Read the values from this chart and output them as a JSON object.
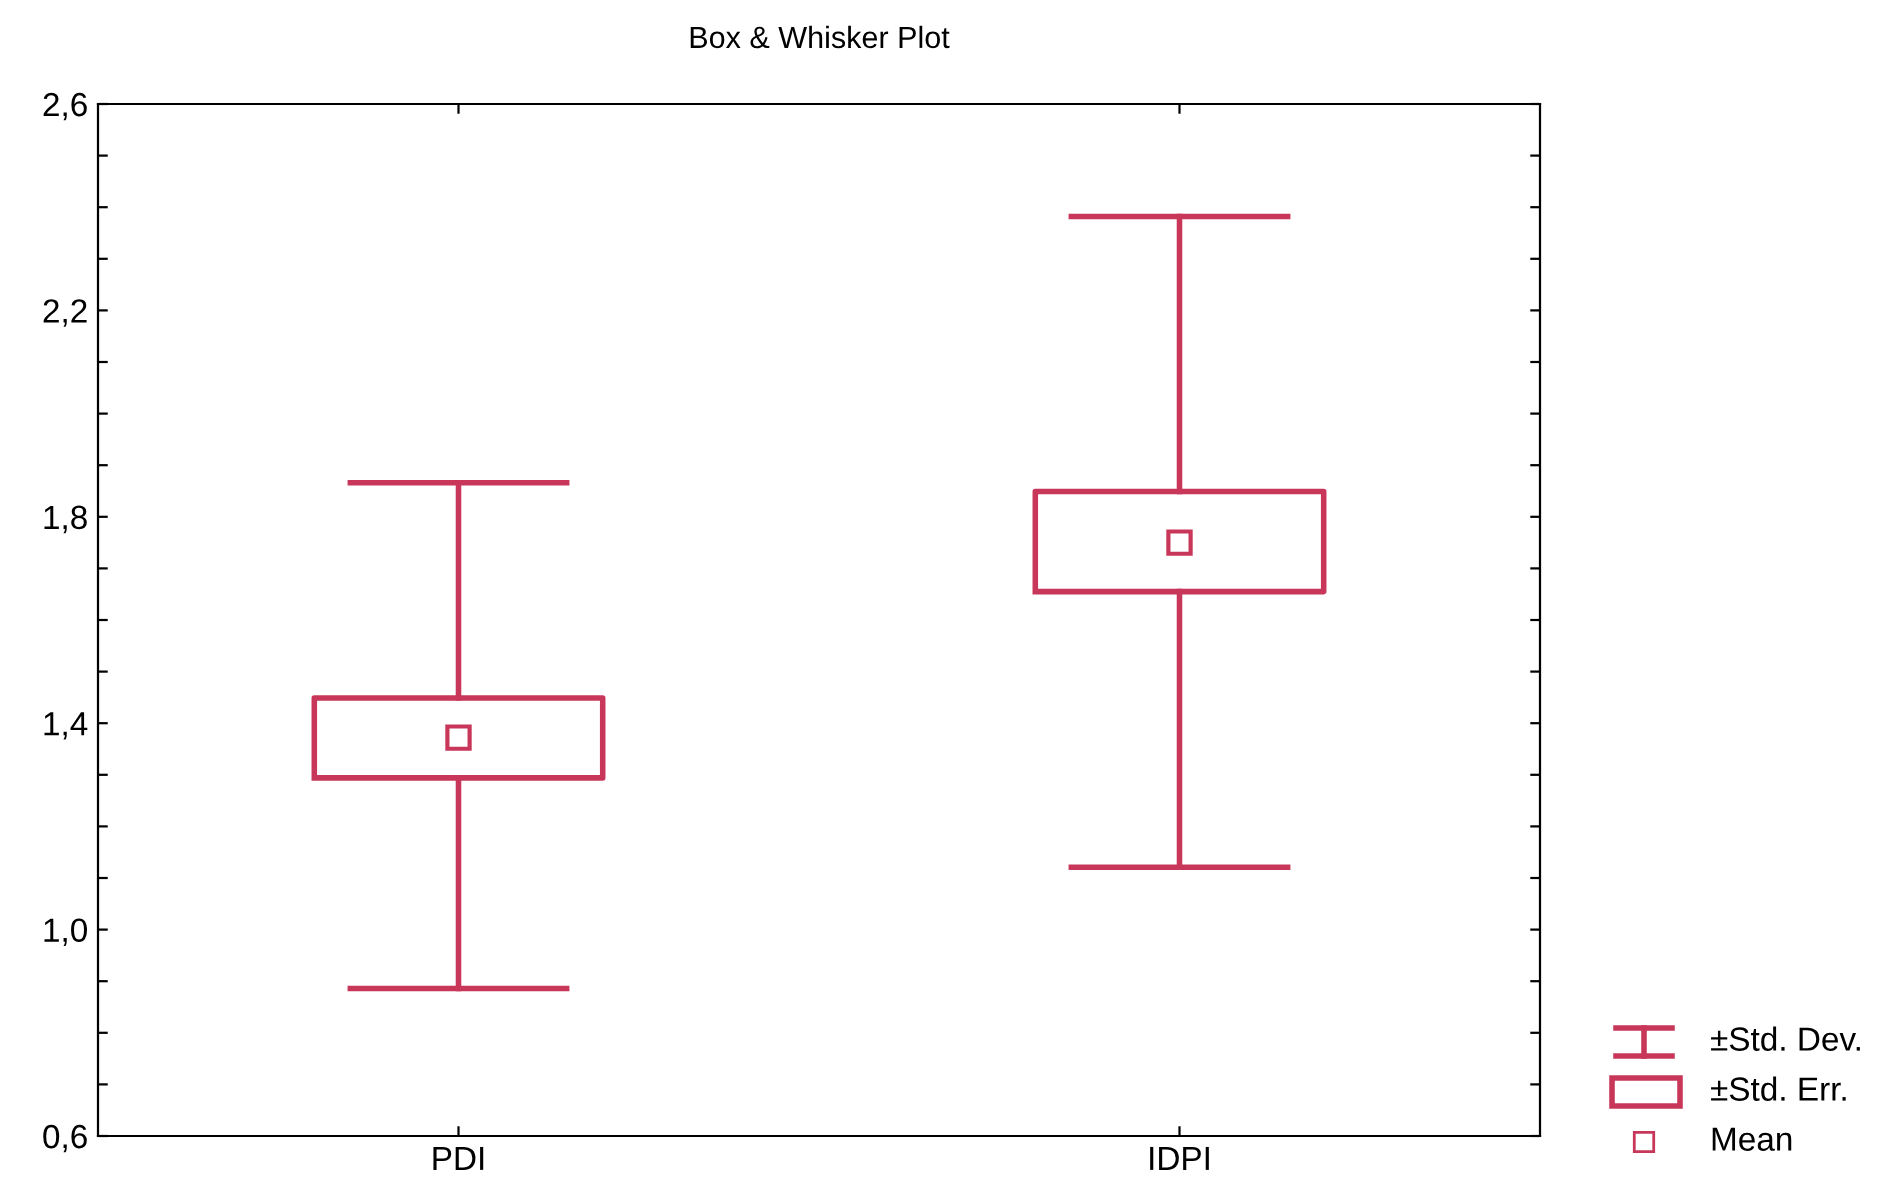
{
  "chart_data": {
    "type": "box",
    "title": "Box & Whisker Plot",
    "categories": [
      "PDI",
      "IDPI"
    ],
    "series": [
      {
        "color": "#c8375a",
        "boxes": [
          {
            "low": 0.886,
            "q1": 1.294,
            "mean": 1.372,
            "q3": 1.449,
            "high": 1.866
          },
          {
            "low": 1.121,
            "q1": 1.655,
            "mean": 1.75,
            "q3": 1.849,
            "high": 2.382
          }
        ]
      }
    ],
    "annotations": [
      "±Std. Dev.",
      "±Std. Err.",
      "Mean"
    ],
    "marker": "square",
    "ylim": [
      0.6,
      2.6
    ],
    "yticks": [
      {
        "value": 0.6,
        "label": "0,6"
      },
      {
        "value": 0.7,
        "label": null
      },
      {
        "value": 0.8,
        "label": null
      },
      {
        "value": 0.9,
        "label": null
      },
      {
        "value": 1.0,
        "label": "1,0"
      },
      {
        "value": 1.1,
        "label": null
      },
      {
        "value": 1.2,
        "label": null
      },
      {
        "value": 1.3,
        "label": null
      },
      {
        "value": 1.4,
        "label": "1,4"
      },
      {
        "value": 1.5,
        "label": null
      },
      {
        "value": 1.6,
        "label": null
      },
      {
        "value": 1.7,
        "label": null
      },
      {
        "value": 1.8,
        "label": "1,8"
      },
      {
        "value": 1.9,
        "label": null
      },
      {
        "value": 2.0,
        "label": null
      },
      {
        "value": 2.1,
        "label": null
      },
      {
        "value": 2.2,
        "label": "2,2"
      },
      {
        "value": 2.3,
        "label": null
      },
      {
        "value": 2.4,
        "label": null
      },
      {
        "value": 2.5,
        "label": null
      },
      {
        "value": 2.6,
        "label": "2,6"
      }
    ]
  }
}
